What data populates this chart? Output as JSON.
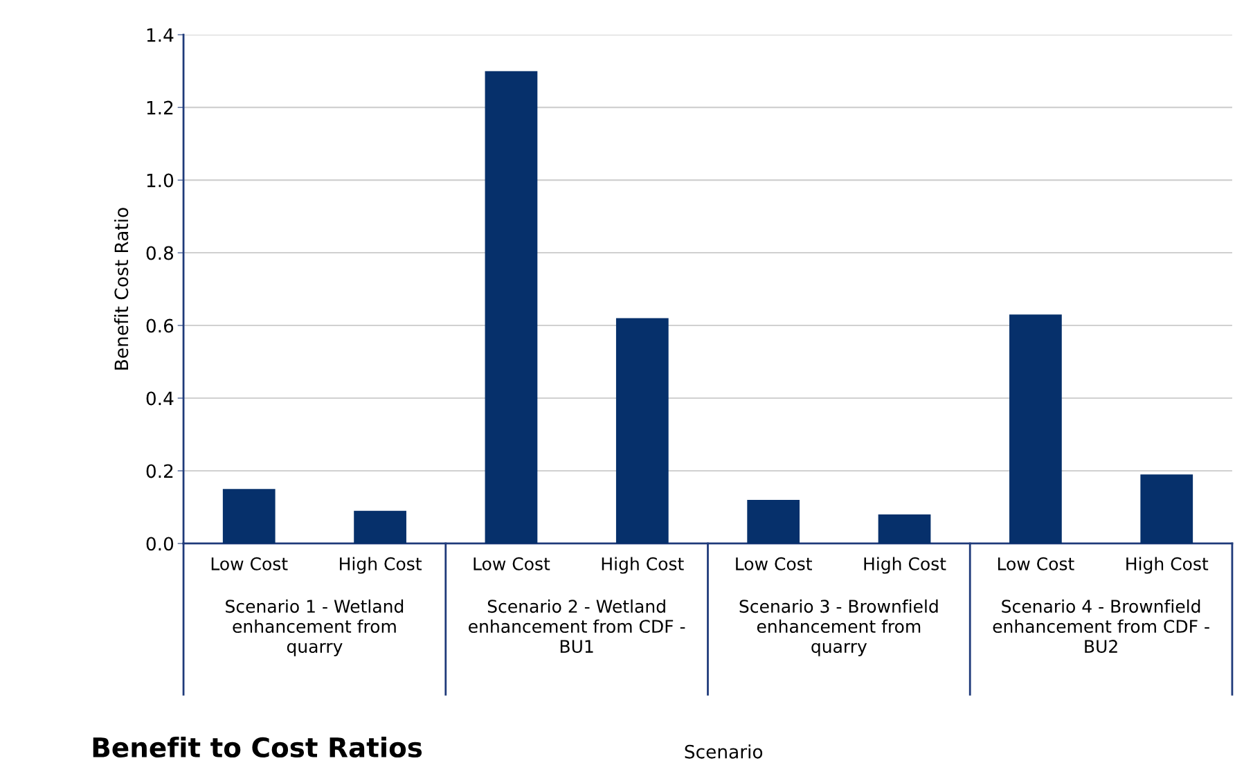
{
  "chart_data": {
    "type": "bar",
    "title": "Benefit to Cost Ratios",
    "ylabel": "Benefit Cost Ratio",
    "categories": [
      "Low Cost",
      "High Cost",
      "Low Cost",
      "High Cost",
      "Low Cost",
      "High Cost",
      "Low Cost",
      "High Cost"
    ],
    "values": [
      0.15,
      0.09,
      1.3,
      0.62,
      0.12,
      0.08,
      0.63,
      0.19
    ],
    "color": "#06306b",
    "ylim": [
      0,
      1.4
    ],
    "yticks": [
      {
        "value": 0,
        "label": "0.0"
      },
      0.2,
      0.4,
      0.6,
      0.8,
      {
        "value": 1.0,
        "label": "1.0"
      },
      1.2,
      1.4
    ],
    "grid": "y",
    "annotations": [
      "Scenario 1 - Wetland\nenhancement from\nquarry",
      "Scenario 2 - Wetland\nenhancement from CDF -\nBU1",
      "Scenario 3 - Brownfield\nenhancement from\nquarry",
      "Scenario 4 - Brownfield\nenhancement from CDF -\nBU2",
      "Scenario"
    ]
  }
}
